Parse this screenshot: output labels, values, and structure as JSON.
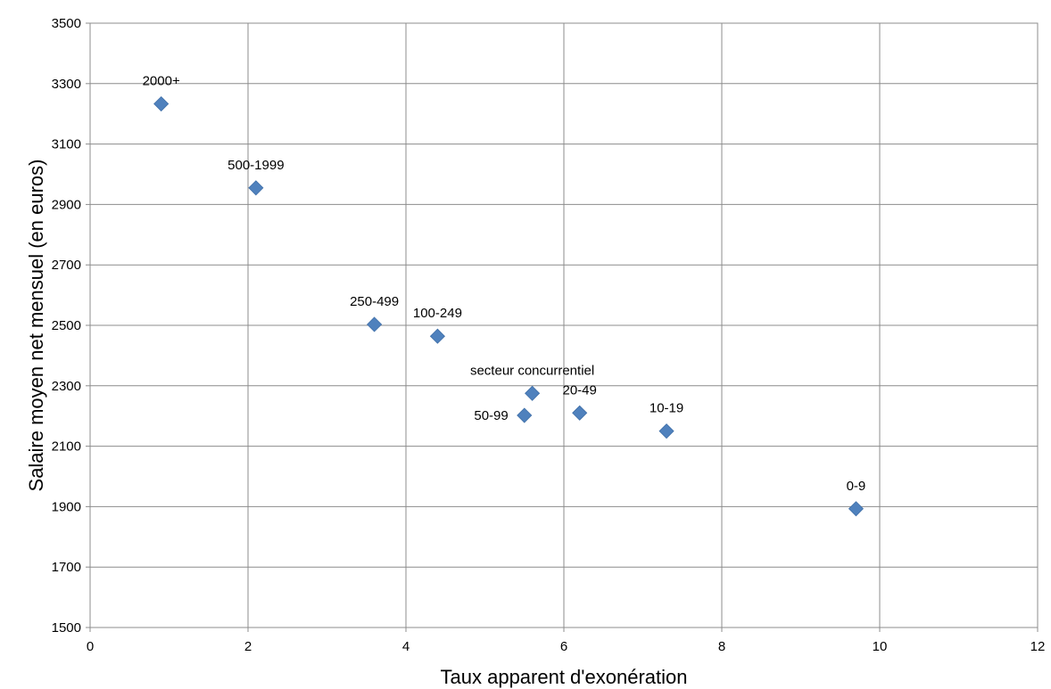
{
  "chart_data": {
    "type": "scatter",
    "xlabel": "Taux apparent d'exonération",
    "ylabel": "Salaire moyen net mensuel (en euros)",
    "xlim": [
      0,
      12
    ],
    "ylim": [
      1500,
      3500
    ],
    "x_ticks": [
      0,
      2,
      4,
      6,
      8,
      10,
      12
    ],
    "y_ticks": [
      1500,
      1700,
      1900,
      2100,
      2300,
      2500,
      2700,
      2900,
      3100,
      3300,
      3500
    ],
    "grid": true,
    "marker": "diamond",
    "marker_color": "#4f81bd",
    "points": [
      {
        "label": "2000+",
        "x": 0.9,
        "y": 3233,
        "label_pos": "above"
      },
      {
        "label": "500-1999",
        "x": 2.1,
        "y": 2955,
        "label_pos": "above"
      },
      {
        "label": "250-499",
        "x": 3.6,
        "y": 2503,
        "label_pos": "above"
      },
      {
        "label": "100-249",
        "x": 4.4,
        "y": 2464,
        "label_pos": "above"
      },
      {
        "label": "secteur concurrentiel",
        "x": 5.6,
        "y": 2275,
        "label_pos": "above"
      },
      {
        "label": "50-99",
        "x": 5.5,
        "y": 2202,
        "label_pos": "left"
      },
      {
        "label": "20-49",
        "x": 6.2,
        "y": 2210,
        "label_pos": "above"
      },
      {
        "label": "10-19",
        "x": 7.3,
        "y": 2150,
        "label_pos": "above"
      },
      {
        "label": "0-9",
        "x": 9.7,
        "y": 1893,
        "label_pos": "above"
      }
    ]
  }
}
